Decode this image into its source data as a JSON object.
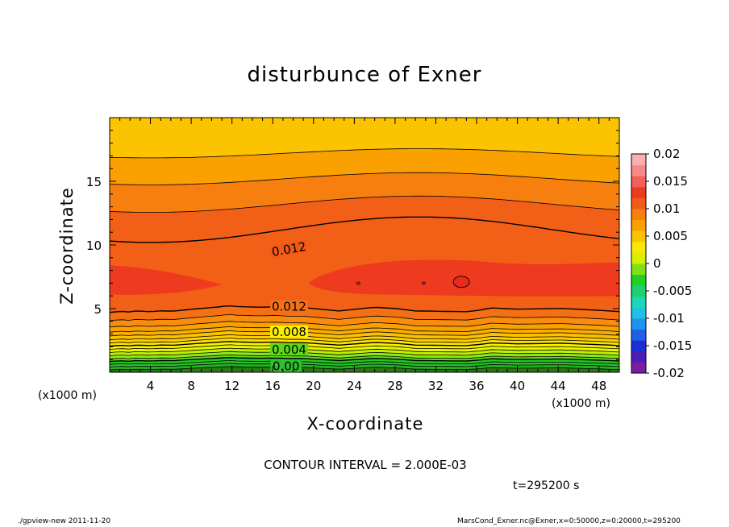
{
  "chart_data": {
    "type": "contour",
    "title": "disturbunce of Exner",
    "xlabel": "X-coordinate",
    "ylabel": "Z-coordinate",
    "x_unit": "(x1000 m)",
    "xlim": [
      0,
      50
    ],
    "ylim": [
      0,
      20
    ],
    "x_ticks": [
      4,
      8,
      12,
      16,
      20,
      24,
      28,
      32,
      36,
      40,
      44,
      48
    ],
    "y_ticks": [
      5,
      10,
      15
    ],
    "contour_interval": "CONTOUR INTERVAL = 2.000E-03",
    "colorbar": {
      "range": [
        -0.02,
        0.02
      ],
      "labels": [
        "0.02",
        "0.015",
        "0.01",
        "0.005",
        "0",
        "-0.005",
        "-0.01",
        "-0.015",
        "-0.02"
      ],
      "colors": [
        "#7a1fa2",
        "#4b1fb5",
        "#1c2fd4",
        "#1f5fe8",
        "#1f93ee",
        "#1fbfe8",
        "#1fd6b4",
        "#1fd070",
        "#22d022",
        "#7fe01a",
        "#d8f000",
        "#f8e800",
        "#fcc400",
        "#faa000",
        "#f77f10",
        "#f35a18",
        "#ee3a1e",
        "#f3605a",
        "#f78a88",
        "#fbb0b0"
      ]
    },
    "contour_labels": [
      {
        "text": "0.012",
        "x": 17.6,
        "z": 9.6
      },
      {
        "text": "0.012",
        "x": 17.6,
        "z": 5.1
      },
      {
        "text": "0.008",
        "x": 17.6,
        "z": 3.1
      },
      {
        "text": "0.004",
        "x": 17.6,
        "z": 1.7
      },
      {
        "text": "0.00",
        "x": 17.3,
        "z": 0.4
      }
    ],
    "time": "t=295200 s",
    "footer_left": "./gpview-new   2011-11-20",
    "footer_right": "MarsCond_Exner.nc@Exner,x=0:50000,z=0:20000,t=295200"
  }
}
